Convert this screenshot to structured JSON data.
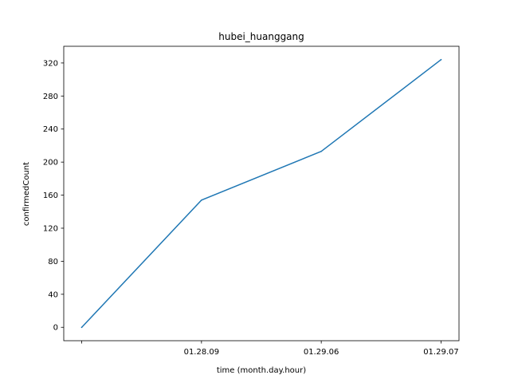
{
  "chart_data": {
    "type": "line",
    "title": "hubei_huanggang",
    "xlabel": "time (month.day.hour)",
    "ylabel": "confirmedCount",
    "x_categories": [
      "",
      "01.28.09",
      "01.29.06",
      "01.29.07"
    ],
    "series": [
      {
        "values": [
          0,
          154,
          213,
          324
        ],
        "color": "#1f77b4"
      }
    ],
    "ylim": [
      -16.2,
      340.2
    ],
    "yticks": [
      0,
      40,
      80,
      120,
      160,
      200,
      240,
      280,
      320
    ],
    "grid": false,
    "legend": "none"
  }
}
